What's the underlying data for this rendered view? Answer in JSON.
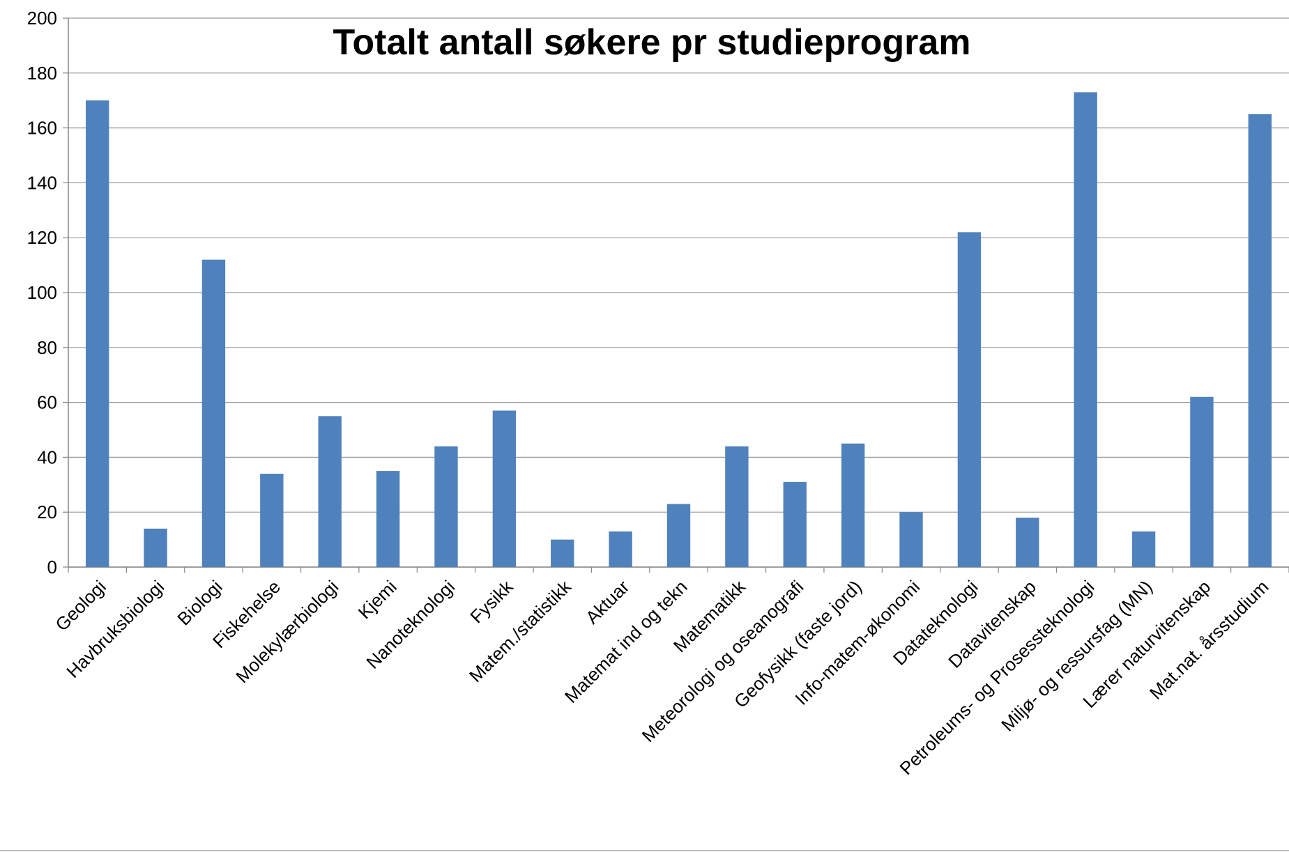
{
  "chart_data": {
    "type": "bar",
    "title": "Totalt antall søkere pr studieprogram",
    "categories": [
      "Geologi",
      "Havbruksbiologi",
      "Biologi",
      "Fiskehelse",
      "Molekylærbiologi",
      "Kjemi",
      "Nanoteknologi",
      "Fysikk",
      "Matem./statistikk",
      "Aktuar",
      "Matemat ind og tekn",
      "Matematikk",
      "Meteorologi og oseanografi",
      "Geofysikk (faste jord)",
      "Info-matem-økonomi",
      "Datateknologi",
      "Datavitenskap",
      "Petroleums- og Prosessteknologi",
      "Miljø- og ressursfag (MN)",
      "Lærer naturvitenskap",
      "Mat.nat. årsstudium"
    ],
    "values": [
      170,
      14,
      112,
      34,
      55,
      35,
      44,
      57,
      10,
      13,
      23,
      44,
      31,
      45,
      20,
      122,
      18,
      173,
      13,
      62,
      165
    ],
    "color": "#4f81bd",
    "ylim": [
      0,
      200
    ],
    "yticks": [
      0,
      20,
      40,
      60,
      80,
      100,
      120,
      140,
      160,
      180,
      200
    ],
    "grid": true
  }
}
